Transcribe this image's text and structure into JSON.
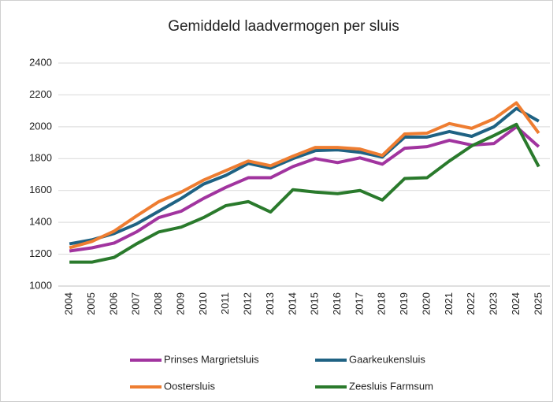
{
  "chart_data": {
    "type": "line",
    "title": "Gemiddeld laadvermogen per sluis",
    "categories": [
      "2004",
      "2005",
      "2006",
      "2007",
      "2008",
      "2009",
      "2010",
      "2011",
      "2012",
      "2013",
      "2014",
      "2015",
      "2016",
      "2017",
      "2018",
      "2019",
      "2020",
      "2021",
      "2022",
      "2023",
      "2024",
      "2025"
    ],
    "series": [
      {
        "name": "Prinses Margrietsluis",
        "color": "#a1349f",
        "values": [
          1220,
          1240,
          1270,
          1340,
          1430,
          1470,
          1550,
          1620,
          1680,
          1680,
          1750,
          1800,
          1775,
          1805,
          1765,
          1865,
          1875,
          1915,
          1885,
          1895,
          2000,
          1875
        ]
      },
      {
        "name": "Gaarkeukensluis",
        "color": "#1f6283",
        "values": [
          1265,
          1290,
          1330,
          1390,
          1470,
          1550,
          1640,
          1695,
          1770,
          1740,
          1800,
          1850,
          1855,
          1840,
          1810,
          1935,
          1935,
          1970,
          1940,
          2000,
          2115,
          2035
        ]
      },
      {
        "name": "Oostersluis",
        "color": "#ee7d31",
        "values": [
          1240,
          1280,
          1345,
          1440,
          1530,
          1590,
          1665,
          1725,
          1785,
          1755,
          1815,
          1870,
          1870,
          1860,
          1820,
          1955,
          1960,
          2020,
          1990,
          2050,
          2150,
          1960
        ]
      },
      {
        "name": "Zeesluis Farmsum",
        "color": "#2a7a2c",
        "values": [
          1150,
          1150,
          1180,
          1265,
          1340,
          1370,
          1430,
          1505,
          1530,
          1465,
          1605,
          1590,
          1580,
          1600,
          1540,
          1675,
          1680,
          1785,
          1880,
          1945,
          2015,
          1750
        ]
      }
    ],
    "ylim": [
      1000,
      2400
    ],
    "yticks": [
      1000,
      1200,
      1400,
      1600,
      1800,
      2000,
      2200,
      2400
    ],
    "grid": true,
    "legend": "bottom"
  }
}
